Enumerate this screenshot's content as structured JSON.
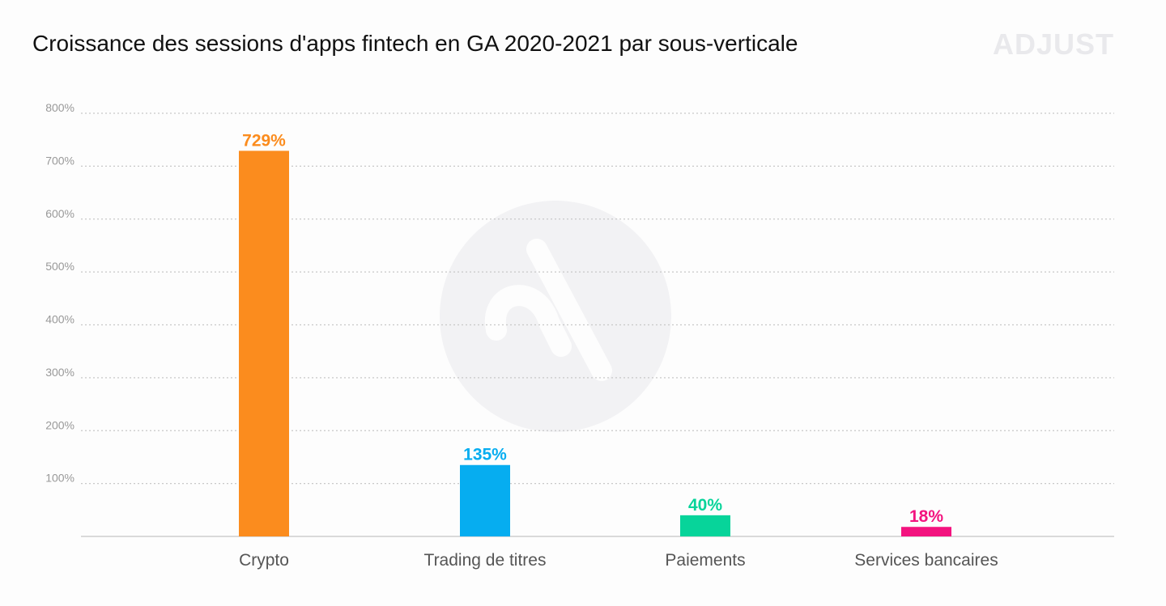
{
  "title": "Croissance des sessions d'apps fintech en GA 2020-2021 par sous-verticale",
  "brand": "ADJUST",
  "colors": {
    "grid": "#c8c8c8",
    "baseline": "#cfcfcf",
    "watermark": "#f2f2f4"
  },
  "chart_data": {
    "type": "bar",
    "categories": [
      "Crypto",
      "Trading de titres",
      "Paiements",
      "Services bancaires"
    ],
    "values": [
      729,
      135,
      40,
      18
    ],
    "data_labels": [
      "729%",
      "135%",
      "40%",
      "18%"
    ],
    "bar_colors": [
      "#fb8c1e",
      "#06adf0",
      "#07d49a",
      "#f3137f"
    ],
    "yticks": [
      100,
      200,
      300,
      400,
      500,
      600,
      700,
      800
    ],
    "ytick_labels": [
      "100%",
      "200%",
      "300%",
      "400%",
      "500%",
      "600%",
      "700%",
      "800%"
    ],
    "ylim": [
      0,
      800
    ],
    "grid": true,
    "xlabel": "",
    "ylabel": ""
  }
}
